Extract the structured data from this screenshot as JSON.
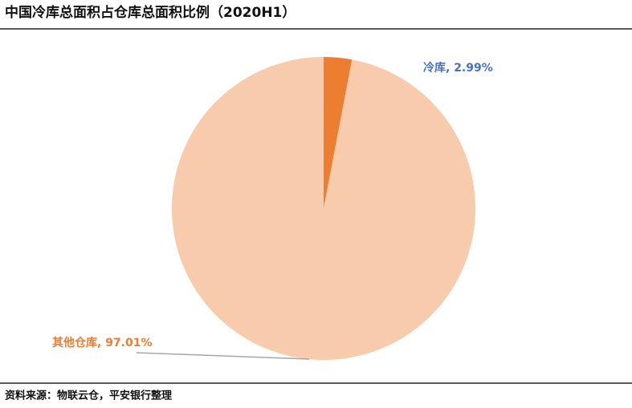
{
  "chart_data": {
    "type": "pie",
    "title": "中国冷库总面积占仓库总面积比例（2020H1）",
    "values": [
      2.99,
      97.01
    ],
    "value_labels": [
      "冷库, 2.99%",
      "其他仓库, 97.01%"
    ],
    "colors": [
      "#ed7d31",
      "#f7cbac"
    ],
    "label_colors": [
      "#4472c4",
      "#ed7d31"
    ],
    "source": "资料来源：物联云仓，平安银行整理"
  }
}
